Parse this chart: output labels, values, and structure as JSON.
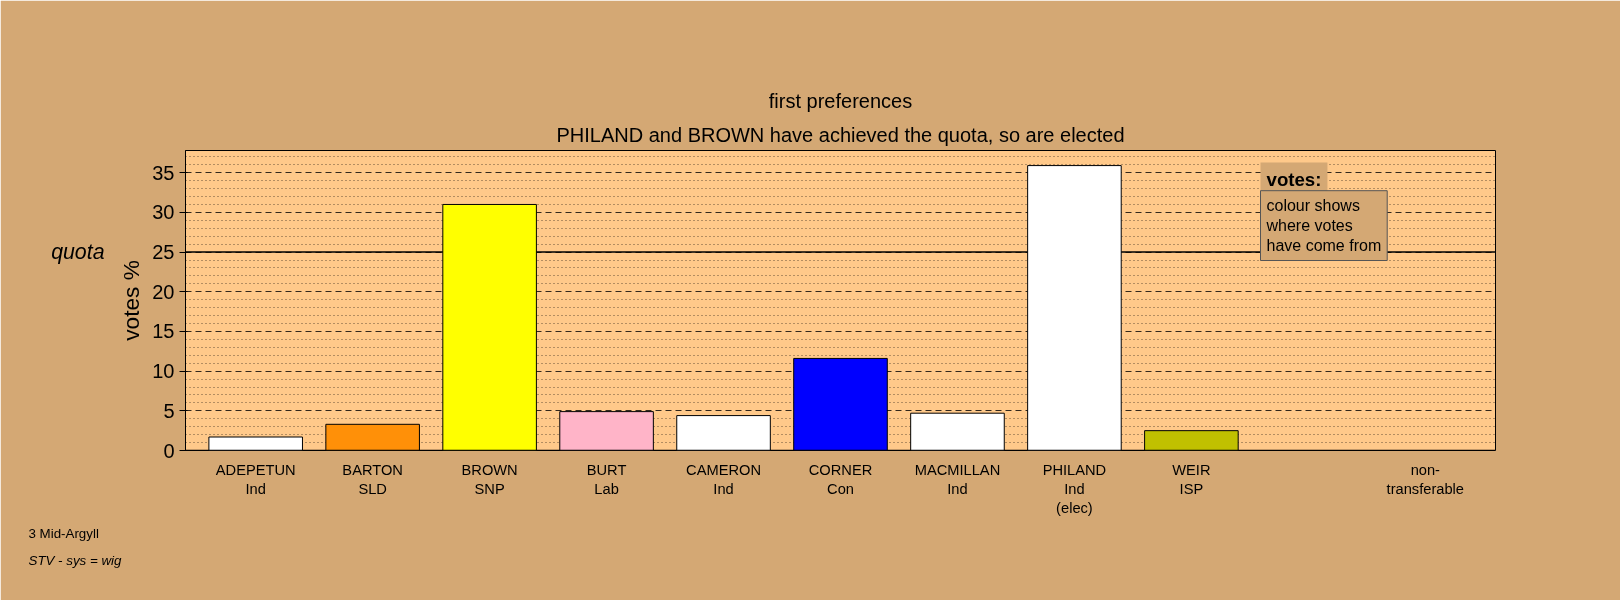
{
  "chart_data": {
    "type": "bar",
    "title": "first preferences",
    "subtitle": "PHILAND and BROWN have achieved the quota, so are elected",
    "ylabel": "votes %",
    "categories": [
      "ADEPETUN\nInd",
      "BARTON\nSLD",
      "BROWN\nSNP",
      "BURT\nLab",
      "CAMERON\nInd",
      "CORNER\nCon",
      "MACMILLAN\nInd",
      "PHILAND\nInd\n(elec)",
      "WEIR\nISP",
      null,
      "non-\ntransferable"
    ],
    "values": [
      1.7,
      3.3,
      31.0,
      4.9,
      4.4,
      11.6,
      4.7,
      35.9,
      2.5,
      null,
      null
    ],
    "colors": [
      "#ffffff",
      "#ff9008",
      "#ffff00",
      "#ffb4c8",
      "#ffffff",
      "#0000ff",
      "#ffffff",
      "#ffffff",
      "#c0c000",
      "#ffffff",
      "#ffffff"
    ],
    "ylim": [
      0,
      37.8
    ],
    "yticks": [
      0,
      5,
      10,
      15,
      20,
      25,
      30,
      35
    ],
    "grid": "y",
    "ref_lines": [
      {
        "axis": "y",
        "value": 25,
        "label": "quota",
        "color": "#000000",
        "line_style": "solid"
      }
    ],
    "annotations": [
      "votes:",
      "colour shows\nwhere votes\nhave come from",
      "3 Mid-Argyll",
      "STV - sys = wig"
    ]
  }
}
